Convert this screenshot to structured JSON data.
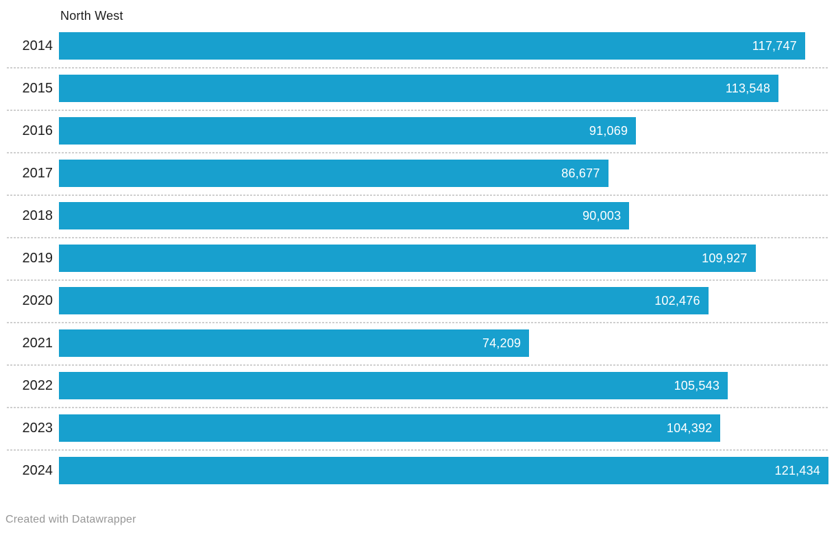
{
  "chart": {
    "title": "North West",
    "footer_credit": "Created with Datawrapper",
    "colors": {
      "bar": "#18a0ce",
      "value_label": "#ffffff",
      "category_label": "#1d1d1d",
      "separator": "#cfcfcf",
      "footer": "#969696",
      "background": "#ffffff"
    }
  },
  "chart_data": {
    "type": "bar",
    "orientation": "horizontal",
    "title": "North West",
    "categories": [
      "2014",
      "2015",
      "2016",
      "2017",
      "2018",
      "2019",
      "2020",
      "2021",
      "2022",
      "2023",
      "2024"
    ],
    "values": [
      117747,
      113548,
      91069,
      86677,
      90003,
      109927,
      102476,
      74209,
      105543,
      104392,
      121434
    ],
    "value_labels": [
      "117,747",
      "113,548",
      "91,069",
      "86,677",
      "90,003",
      "109,927",
      "102,476",
      "74,209",
      "105,543",
      "104,392",
      "121,434"
    ],
    "xlabel": "",
    "ylabel": "",
    "xlim": [
      0,
      121434
    ],
    "grid": false,
    "legend_position": "none",
    "value_labels_inside_bars": true,
    "annotations": [
      "Created with Datawrapper"
    ]
  }
}
